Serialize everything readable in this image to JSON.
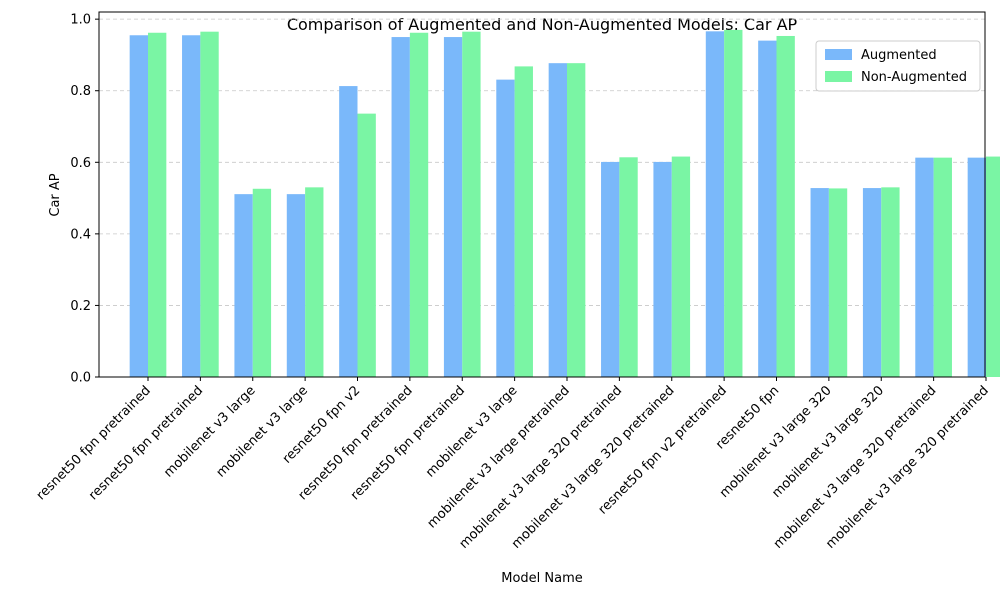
{
  "chart_data": {
    "type": "bar",
    "title": "Comparison of Augmented and Non-Augmented Models: Car AP",
    "xlabel": "Model Name",
    "ylabel": "Car AP",
    "ylim": [
      0,
      1.02
    ],
    "yticks": [
      "0.0",
      "0.2",
      "0.4",
      "0.6",
      "0.8",
      "1.0"
    ],
    "grid": "y-dashed",
    "legend_position": "top-right",
    "categories": [
      "resnet50 fpn pretrained",
      "resnet50 fpn pretrained",
      "mobilenet v3 large",
      "mobilenet v3 large",
      "resnet50 fpn v2",
      "resnet50 fpn pretrained",
      "resnet50 fpn pretrained",
      "mobilenet v3 large",
      "mobilenet v3 large pretrained",
      "mobilenet v3 large 320 pretrained",
      "mobilenet v3 large 320 pretrained",
      "resnet50 fpn v2 pretrained",
      "resnet50 fpn",
      "mobilenet v3 large 320",
      "mobilenet v3 large 320",
      "mobilenet v3 large 320 pretrained",
      "mobilenet v3 large 320 pretrained"
    ],
    "series": [
      {
        "name": "Augmented",
        "color": "#7ab8fa",
        "values": [
          0.955,
          0.955,
          0.511,
          0.511,
          0.813,
          0.95,
          0.95,
          0.831,
          0.877,
          0.601,
          0.601,
          0.966,
          0.94,
          0.528,
          0.528,
          0.613,
          0.613
        ]
      },
      {
        "name": "Non-Augmented",
        "color": "#7af5a4",
        "values": [
          0.962,
          0.965,
          0.526,
          0.53,
          0.736,
          0.962,
          0.965,
          0.868,
          0.877,
          0.614,
          0.616,
          0.97,
          0.953,
          0.527,
          0.53,
          0.613,
          0.616
        ]
      }
    ]
  }
}
